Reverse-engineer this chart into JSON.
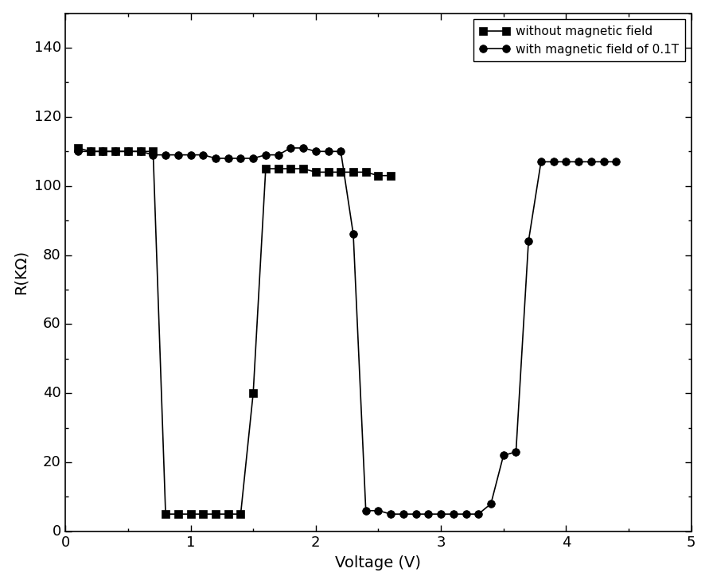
{
  "series1_label": "without magnetic field",
  "series2_label": "with magnetic field of 0.1T",
  "series1_x": [
    0.1,
    0.2,
    0.3,
    0.4,
    0.5,
    0.6,
    0.7,
    0.8,
    0.9,
    1.0,
    1.1,
    1.2,
    1.3,
    1.4,
    1.5,
    1.6,
    1.7,
    1.8,
    1.9,
    2.0,
    2.1,
    2.2,
    2.3,
    2.4,
    2.5,
    2.6
  ],
  "series1_y": [
    111,
    110,
    110,
    110,
    110,
    110,
    110,
    5,
    5,
    5,
    5,
    5,
    5,
    5,
    40,
    105,
    105,
    105,
    105,
    104,
    104,
    104,
    104,
    104,
    103,
    103
  ],
  "series2_x": [
    0.1,
    0.2,
    0.3,
    0.4,
    0.5,
    0.6,
    0.7,
    0.8,
    0.9,
    1.0,
    1.1,
    1.2,
    1.3,
    1.4,
    1.5,
    1.6,
    1.7,
    1.8,
    1.9,
    2.0,
    2.1,
    2.2,
    2.3,
    2.4,
    2.5,
    2.6,
    2.7,
    2.8,
    2.9,
    3.0,
    3.1,
    3.2,
    3.3,
    3.4,
    3.5,
    3.6,
    3.7,
    3.8,
    3.9,
    4.0,
    4.1,
    4.2,
    4.3,
    4.4
  ],
  "series2_y": [
    110,
    110,
    110,
    110,
    110,
    110,
    109,
    109,
    109,
    109,
    109,
    108,
    108,
    108,
    108,
    109,
    109,
    111,
    111,
    110,
    110,
    110,
    86,
    6,
    6,
    5,
    5,
    5,
    5,
    5,
    5,
    5,
    5,
    8,
    22,
    23,
    84,
    107,
    107,
    107,
    107,
    107,
    107,
    107
  ],
  "xlabel": "Voltage (V)",
  "ylabel": "R(KΩ)",
  "xlim": [
    0,
    5
  ],
  "ylim": [
    0,
    150
  ],
  "yticks": [
    0,
    20,
    40,
    60,
    80,
    100,
    120,
    140
  ],
  "xticks": [
    0,
    1,
    2,
    3,
    4,
    5
  ],
  "line_color": "black",
  "marker1": "s",
  "marker2": "o",
  "markersize": 7,
  "linewidth": 1.2,
  "legend_loc": "upper right",
  "xlabel_fontsize": 14,
  "ylabel_fontsize": 14,
  "tick_labelsize": 13,
  "legend_fontsize": 11
}
